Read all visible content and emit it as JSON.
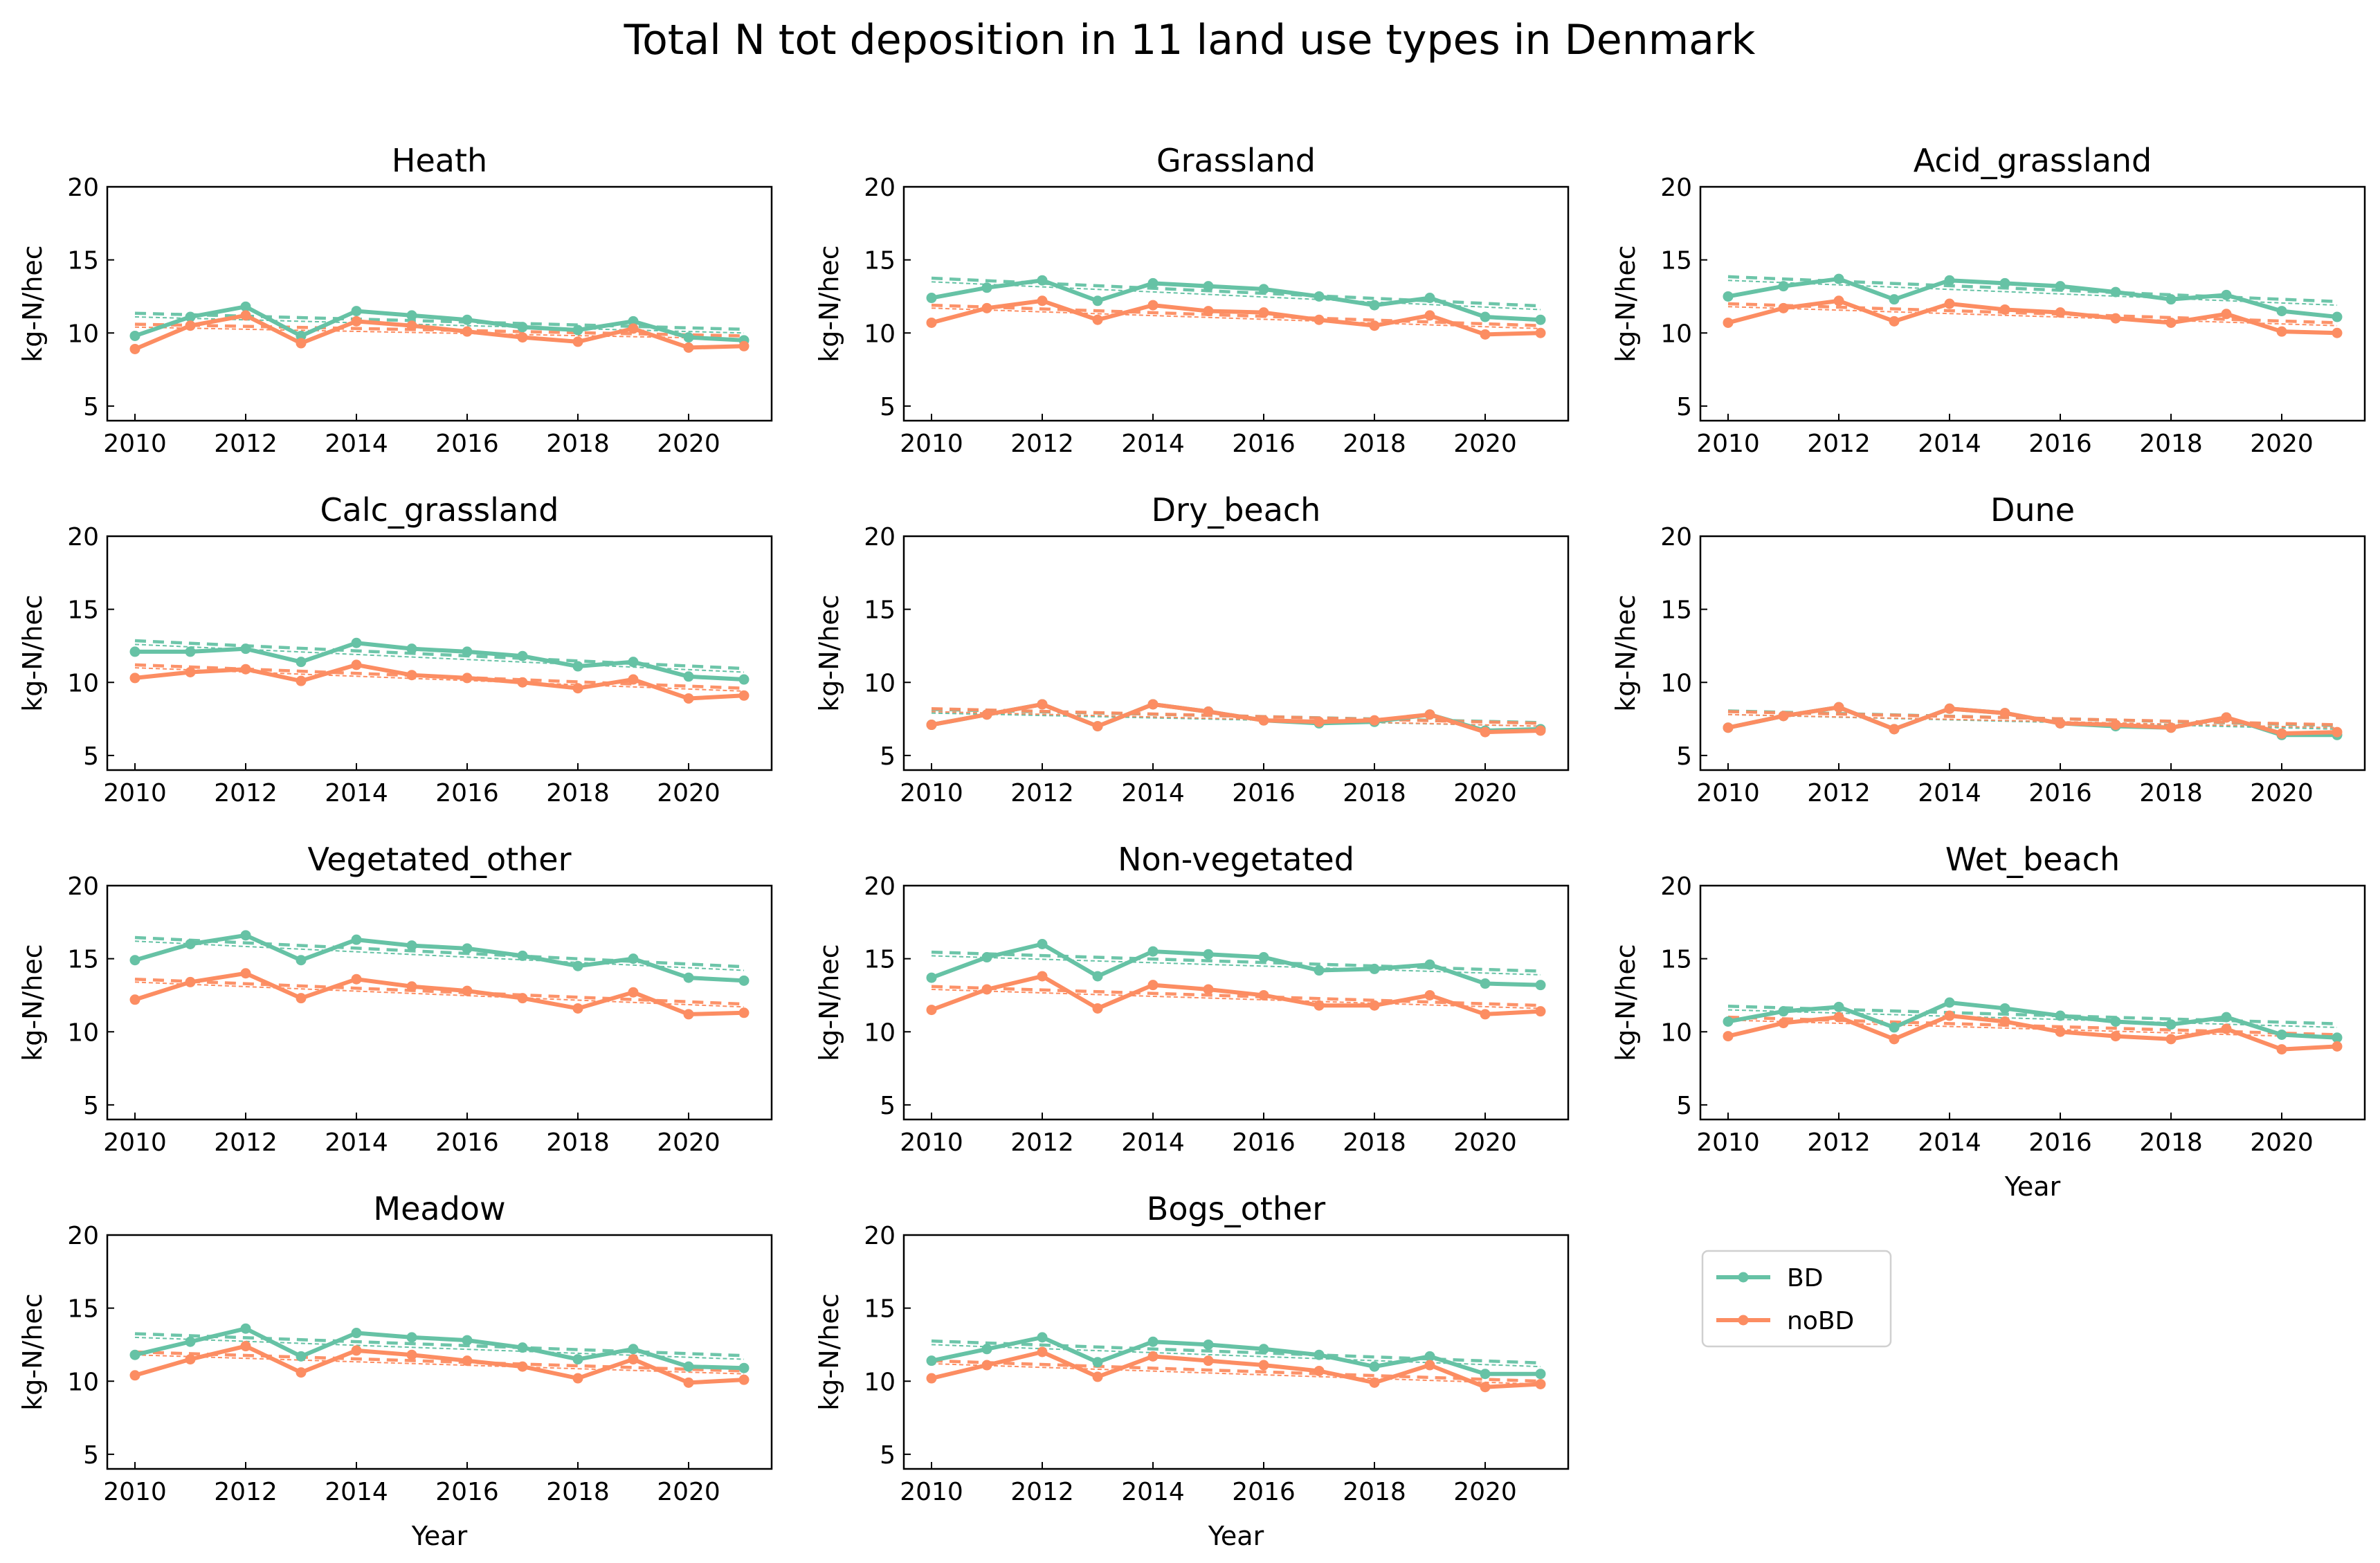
{
  "figure": {
    "title": "Total N tot deposition in 11 land use types in Denmark"
  },
  "colors": {
    "BD": "#66c2a5",
    "noBD": "#fc8d62"
  },
  "legend": {
    "placement": "right of last row",
    "entries": [
      "BD",
      "noBD"
    ]
  },
  "chart_data": [
    {
      "type": "line",
      "title": "Heath",
      "xlabel": "",
      "ylabel": "kg-N/hec",
      "ylim": [
        4,
        20
      ],
      "xlim": [
        2009.5,
        2021.5
      ],
      "xticks": [
        "2010",
        "2012",
        "2014",
        "2016",
        "2018",
        "2020"
      ],
      "yticks": [
        "5",
        "10",
        "15",
        "20"
      ],
      "x": [
        2010,
        2011,
        2012,
        2013,
        2014,
        2015,
        2016,
        2017,
        2018,
        2019,
        2020,
        2021
      ],
      "series": [
        {
          "name": "BD",
          "values": [
            9.8,
            11.1,
            11.8,
            9.8,
            11.5,
            11.2,
            10.9,
            10.4,
            10.2,
            10.8,
            9.7,
            9.5
          ],
          "trend": [
            11.1,
            10.0
          ]
        },
        {
          "name": "noBD",
          "values": [
            8.9,
            10.5,
            11.2,
            9.3,
            10.8,
            10.5,
            10.1,
            9.7,
            9.4,
            10.3,
            9.0,
            9.1
          ],
          "trend": [
            10.4,
            9.6
          ]
        }
      ]
    },
    {
      "type": "line",
      "title": "Grassland",
      "xlabel": "",
      "ylabel": "kg-N/hec",
      "ylim": [
        4,
        20
      ],
      "xlim": [
        2009.5,
        2021.5
      ],
      "xticks": [
        "2010",
        "2012",
        "2014",
        "2016",
        "2018",
        "2020"
      ],
      "yticks": [
        "5",
        "10",
        "15",
        "20"
      ],
      "x": [
        2010,
        2011,
        2012,
        2013,
        2014,
        2015,
        2016,
        2017,
        2018,
        2019,
        2020,
        2021
      ],
      "series": [
        {
          "name": "BD",
          "values": [
            12.4,
            13.1,
            13.6,
            12.2,
            13.4,
            13.2,
            13.0,
            12.5,
            11.9,
            12.4,
            11.1,
            10.9
          ],
          "trend": [
            13.5,
            11.6
          ]
        },
        {
          "name": "noBD",
          "values": [
            10.7,
            11.7,
            12.2,
            10.9,
            11.9,
            11.5,
            11.4,
            10.9,
            10.5,
            11.2,
            9.9,
            10.0
          ],
          "trend": [
            11.7,
            10.3
          ]
        }
      ]
    },
    {
      "type": "line",
      "title": "Acid_grassland",
      "xlabel": "",
      "ylabel": "kg-N/hec",
      "ylim": [
        4,
        20
      ],
      "xlim": [
        2009.5,
        2021.5
      ],
      "xticks": [
        "2010",
        "2012",
        "2014",
        "2016",
        "2018",
        "2020"
      ],
      "yticks": [
        "5",
        "10",
        "15",
        "20"
      ],
      "x": [
        2010,
        2011,
        2012,
        2013,
        2014,
        2015,
        2016,
        2017,
        2018,
        2019,
        2020,
        2021
      ],
      "series": [
        {
          "name": "BD",
          "values": [
            12.5,
            13.2,
            13.7,
            12.3,
            13.6,
            13.4,
            13.2,
            12.8,
            12.3,
            12.6,
            11.5,
            11.1
          ],
          "trend": [
            13.6,
            11.9
          ]
        },
        {
          "name": "noBD",
          "values": [
            10.7,
            11.7,
            12.2,
            10.8,
            12.0,
            11.6,
            11.4,
            11.0,
            10.7,
            11.3,
            10.1,
            10.0
          ],
          "trend": [
            11.8,
            10.5
          ]
        }
      ]
    },
    {
      "type": "line",
      "title": "Calc_grassland",
      "xlabel": "",
      "ylabel": "kg-N/hec",
      "ylim": [
        4,
        20
      ],
      "xlim": [
        2009.5,
        2021.5
      ],
      "xticks": [
        "2010",
        "2012",
        "2014",
        "2016",
        "2018",
        "2020"
      ],
      "yticks": [
        "5",
        "10",
        "15",
        "20"
      ],
      "x": [
        2010,
        2011,
        2012,
        2013,
        2014,
        2015,
        2016,
        2017,
        2018,
        2019,
        2020,
        2021
      ],
      "series": [
        {
          "name": "BD",
          "values": [
            12.1,
            12.1,
            12.3,
            11.4,
            12.7,
            12.3,
            12.1,
            11.8,
            11.1,
            11.4,
            10.4,
            10.2
          ],
          "trend": [
            12.6,
            10.7
          ]
        },
        {
          "name": "noBD",
          "values": [
            10.3,
            10.7,
            10.9,
            10.1,
            11.2,
            10.5,
            10.3,
            10.0,
            9.6,
            10.2,
            8.9,
            9.1
          ],
          "trend": [
            11.0,
            9.4
          ]
        }
      ]
    },
    {
      "type": "line",
      "title": "Dry_beach",
      "xlabel": "",
      "ylabel": "kg-N/hec",
      "ylim": [
        4,
        20
      ],
      "xlim": [
        2009.5,
        2021.5
      ],
      "xticks": [
        "2010",
        "2012",
        "2014",
        "2016",
        "2018",
        "2020"
      ],
      "yticks": [
        "5",
        "10",
        "15",
        "20"
      ],
      "x": [
        2010,
        2011,
        2012,
        2013,
        2014,
        2015,
        2016,
        2017,
        2018,
        2019,
        2020,
        2021
      ],
      "series": [
        {
          "name": "BD",
          "values": [
            7.1,
            7.8,
            8.5,
            7.0,
            8.5,
            8.0,
            7.4,
            7.2,
            7.3,
            7.8,
            6.7,
            6.8
          ],
          "trend": [
            7.9,
            7.0
          ]
        },
        {
          "name": "noBD",
          "values": [
            7.1,
            7.8,
            8.5,
            7.0,
            8.5,
            8.0,
            7.4,
            7.3,
            7.4,
            7.8,
            6.6,
            6.7
          ],
          "trend": [
            8.0,
            7.0
          ]
        }
      ]
    },
    {
      "type": "line",
      "title": "Dune",
      "xlabel": "",
      "ylabel": "kg-N/hec",
      "ylim": [
        4,
        20
      ],
      "xlim": [
        2009.5,
        2021.5
      ],
      "xticks": [
        "2010",
        "2012",
        "2014",
        "2016",
        "2018",
        "2020"
      ],
      "yticks": [
        "5",
        "10",
        "15",
        "20"
      ],
      "x": [
        2010,
        2011,
        2012,
        2013,
        2014,
        2015,
        2016,
        2017,
        2018,
        2019,
        2020,
        2021
      ],
      "series": [
        {
          "name": "BD",
          "values": [
            6.9,
            7.7,
            8.3,
            6.8,
            8.2,
            7.9,
            7.2,
            7.0,
            6.9,
            7.6,
            6.4,
            6.4
          ],
          "trend": [
            7.8,
            6.8
          ]
        },
        {
          "name": "noBD",
          "values": [
            6.9,
            7.7,
            8.3,
            6.8,
            8.2,
            7.9,
            7.2,
            7.1,
            6.9,
            7.6,
            6.5,
            6.6
          ],
          "trend": [
            7.8,
            6.9
          ]
        }
      ]
    },
    {
      "type": "line",
      "title": "Vegetated_other",
      "xlabel": "",
      "ylabel": "kg-N/hec",
      "ylim": [
        4,
        20
      ],
      "xlim": [
        2009.5,
        2021.5
      ],
      "xticks": [
        "2010",
        "2012",
        "2014",
        "2016",
        "2018",
        "2020"
      ],
      "yticks": [
        "5",
        "10",
        "15",
        "20"
      ],
      "x": [
        2010,
        2011,
        2012,
        2013,
        2014,
        2015,
        2016,
        2017,
        2018,
        2019,
        2020,
        2021
      ],
      "series": [
        {
          "name": "BD",
          "values": [
            14.9,
            16.0,
            16.6,
            14.9,
            16.3,
            15.9,
            15.7,
            15.2,
            14.5,
            15.0,
            13.7,
            13.5
          ],
          "trend": [
            16.2,
            14.2
          ]
        },
        {
          "name": "noBD",
          "values": [
            12.2,
            13.4,
            14.0,
            12.3,
            13.6,
            13.1,
            12.8,
            12.3,
            11.6,
            12.7,
            11.2,
            11.3
          ],
          "trend": [
            13.4,
            11.7
          ]
        }
      ]
    },
    {
      "type": "line",
      "title": "Non-vegetated",
      "xlabel": "",
      "ylabel": "kg-N/hec",
      "ylim": [
        4,
        20
      ],
      "xlim": [
        2009.5,
        2021.5
      ],
      "xticks": [
        "2010",
        "2012",
        "2014",
        "2016",
        "2018",
        "2020"
      ],
      "yticks": [
        "5",
        "10",
        "15",
        "20"
      ],
      "x": [
        2010,
        2011,
        2012,
        2013,
        2014,
        2015,
        2016,
        2017,
        2018,
        2019,
        2020,
        2021
      ],
      "series": [
        {
          "name": "BD",
          "values": [
            13.7,
            15.1,
            16.0,
            13.8,
            15.5,
            15.3,
            15.1,
            14.2,
            14.3,
            14.6,
            13.3,
            13.2
          ],
          "trend": [
            15.2,
            13.9
          ]
        },
        {
          "name": "noBD",
          "values": [
            11.5,
            12.9,
            13.8,
            11.6,
            13.2,
            12.9,
            12.5,
            11.8,
            11.8,
            12.5,
            11.2,
            11.4
          ],
          "trend": [
            12.9,
            11.6
          ]
        }
      ]
    },
    {
      "type": "line",
      "title": "Wet_beach",
      "xlabel": "Year",
      "ylabel": "kg-N/hec",
      "ylim": [
        4,
        20
      ],
      "xlim": [
        2009.5,
        2021.5
      ],
      "xticks": [
        "2010",
        "2012",
        "2014",
        "2016",
        "2018",
        "2020"
      ],
      "yticks": [
        "5",
        "10",
        "15",
        "20"
      ],
      "x": [
        2010,
        2011,
        2012,
        2013,
        2014,
        2015,
        2016,
        2017,
        2018,
        2019,
        2020,
        2021
      ],
      "series": [
        {
          "name": "BD",
          "values": [
            10.7,
            11.4,
            11.7,
            10.3,
            12.0,
            11.6,
            11.1,
            10.7,
            10.5,
            11.0,
            9.8,
            9.6
          ],
          "trend": [
            11.5,
            10.3
          ]
        },
        {
          "name": "noBD",
          "values": [
            9.7,
            10.6,
            11.0,
            9.5,
            11.1,
            10.7,
            10.0,
            9.7,
            9.5,
            10.2,
            8.8,
            9.0
          ],
          "trend": [
            10.8,
            9.6
          ]
        }
      ]
    },
    {
      "type": "line",
      "title": "Meadow",
      "xlabel": "Year",
      "ylabel": "kg-N/hec",
      "ylim": [
        4,
        20
      ],
      "xlim": [
        2009.5,
        2021.5
      ],
      "xticks": [
        "2010",
        "2012",
        "2014",
        "2016",
        "2018",
        "2020"
      ],
      "yticks": [
        "5",
        "10",
        "15",
        "20"
      ],
      "x": [
        2010,
        2011,
        2012,
        2013,
        2014,
        2015,
        2016,
        2017,
        2018,
        2019,
        2020,
        2021
      ],
      "series": [
        {
          "name": "BD",
          "values": [
            11.8,
            12.7,
            13.6,
            11.7,
            13.3,
            13.0,
            12.8,
            12.3,
            11.5,
            12.2,
            11.0,
            10.9
          ],
          "trend": [
            13.0,
            11.5
          ]
        },
        {
          "name": "noBD",
          "values": [
            10.4,
            11.5,
            12.4,
            10.6,
            12.1,
            11.8,
            11.4,
            11.0,
            10.2,
            11.5,
            9.9,
            10.1
          ],
          "trend": [
            11.8,
            10.5
          ]
        }
      ]
    },
    {
      "type": "line",
      "title": "Bogs_other",
      "xlabel": "Year",
      "ylabel": "kg-N/hec",
      "ylim": [
        4,
        20
      ],
      "xlim": [
        2009.5,
        2021.5
      ],
      "xticks": [
        "2010",
        "2012",
        "2014",
        "2016",
        "2018",
        "2020"
      ],
      "yticks": [
        "5",
        "10",
        "15",
        "20"
      ],
      "x": [
        2010,
        2011,
        2012,
        2013,
        2014,
        2015,
        2016,
        2017,
        2018,
        2019,
        2020,
        2021
      ],
      "series": [
        {
          "name": "BD",
          "values": [
            11.4,
            12.2,
            13.0,
            11.3,
            12.7,
            12.5,
            12.2,
            11.8,
            11.0,
            11.7,
            10.5,
            10.5
          ],
          "trend": [
            12.5,
            11.0
          ]
        },
        {
          "name": "noBD",
          "values": [
            10.2,
            11.1,
            12.0,
            10.3,
            11.7,
            11.4,
            11.1,
            10.7,
            9.9,
            11.1,
            9.6,
            9.8
          ],
          "trend": [
            11.2,
            9.8
          ]
        }
      ]
    }
  ]
}
